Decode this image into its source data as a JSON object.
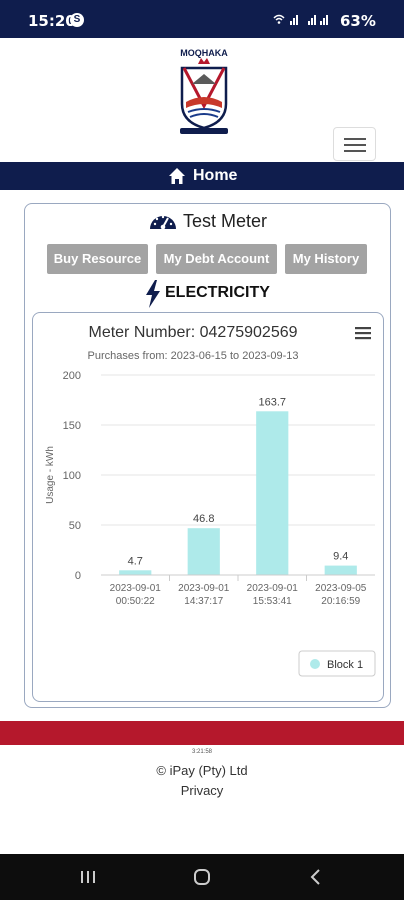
{
  "status_bar": {
    "time": "15:20",
    "notification_badge": "S",
    "signal_text": "VoLTE LTE",
    "battery": "63%"
  },
  "header": {
    "logo_name": "moqhaka-municipality-crest",
    "logo_text": "MOQHAKA"
  },
  "nav": {
    "home_label": "Home"
  },
  "meter": {
    "title": "Test Meter",
    "buttons": {
      "buy": "Buy Resource",
      "debt": "My Debt Account",
      "history": "My History"
    },
    "resource_label": "ELECTRICITY"
  },
  "chart_data": {
    "type": "bar",
    "title": "Meter Number: 04275902569",
    "subtitle": "Purchases from: 2023-06-15 to 2023-09-13",
    "ylabel": "Usage - kWh",
    "xlabel": "",
    "ylim": [
      0,
      200
    ],
    "yticks": [
      "0",
      "50",
      "100",
      "150",
      "200"
    ],
    "categories": [
      [
        "2023-09-01",
        "00:50:22"
      ],
      [
        "2023-09-01",
        "14:37:17"
      ],
      [
        "2023-09-01",
        "15:53:41"
      ],
      [
        "2023-09-05",
        "20:16:59"
      ]
    ],
    "series": [
      {
        "name": "Block 1",
        "values": [
          4.7,
          46.8,
          163.7,
          9.4
        ],
        "labels": [
          "4.7",
          "46.8",
          "163.7",
          "9.4"
        ]
      }
    ],
    "bar_color": "#aeeaea",
    "grid": true,
    "legend_position": "bottom-right"
  },
  "footer": {
    "time": "3:21:58",
    "copyright": "© iPay (Pty) Ltd",
    "privacy": "Privacy"
  },
  "colors": {
    "navy": "#0f1d4d",
    "red": "#b5182c",
    "button_gray": "#a3a3a3"
  }
}
